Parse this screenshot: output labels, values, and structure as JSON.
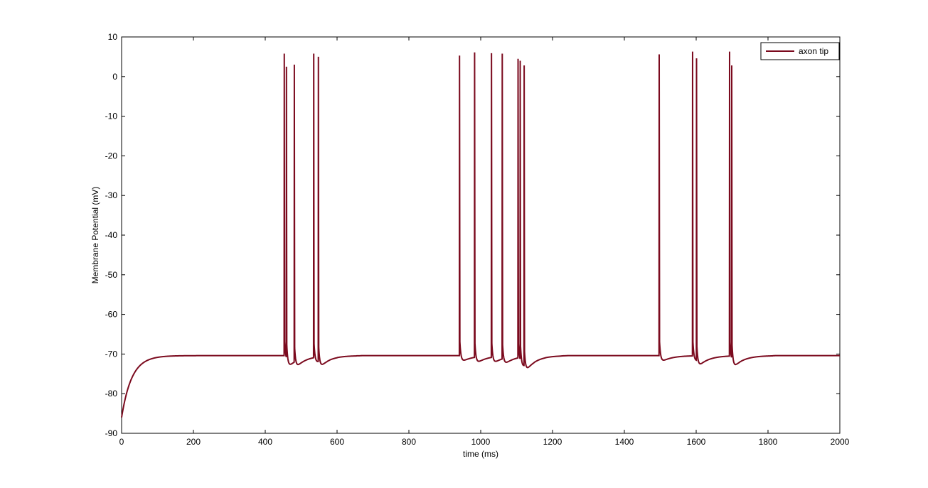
{
  "chart_data": {
    "type": "line",
    "title": "",
    "xlabel": "time (ms)",
    "ylabel": "Membrane Potential (mV)",
    "xlim": [
      0,
      2000
    ],
    "ylim": [
      -90,
      10
    ],
    "xticks": [
      0,
      200,
      400,
      600,
      800,
      1000,
      1200,
      1400,
      1600,
      1800,
      2000
    ],
    "yticks": [
      -90,
      -80,
      -70,
      -60,
      -50,
      -40,
      -30,
      -20,
      -10,
      0,
      10
    ],
    "grid": false,
    "legend": {
      "position": "top-right"
    },
    "series": [
      {
        "name": "axon tip",
        "color": "#7b0a1e",
        "spikes": [
          {
            "t": 453,
            "peak": 5.8
          },
          {
            "t": 459,
            "peak": 2.5
          },
          {
            "t": 481,
            "peak": 3.0
          },
          {
            "t": 535,
            "peak": 5.8
          },
          {
            "t": 548,
            "peak": 5.0
          },
          {
            "t": 941,
            "peak": 5.3
          },
          {
            "t": 983,
            "peak": 6.1
          },
          {
            "t": 1030,
            "peak": 5.9
          },
          {
            "t": 1060,
            "peak": 5.8
          },
          {
            "t": 1104,
            "peak": 4.5
          },
          {
            "t": 1110,
            "peak": 4.0
          },
          {
            "t": 1121,
            "peak": 2.8
          },
          {
            "t": 1497,
            "peak": 5.6
          },
          {
            "t": 1590,
            "peak": 6.3
          },
          {
            "t": 1601,
            "peak": 4.6
          },
          {
            "t": 1693,
            "peak": 6.3
          },
          {
            "t": 1699,
            "peak": 2.8
          }
        ],
        "resting_potential": -70.4,
        "initial_value": -86
      }
    ]
  }
}
